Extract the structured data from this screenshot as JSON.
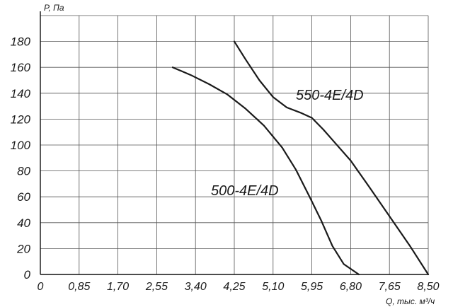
{
  "chart_data": {
    "type": "line",
    "title": "",
    "xlabel": "Q, тыс. м³/ч",
    "ylabel": "P, Па",
    "xlim": [
      0,
      8.5
    ],
    "ylim": [
      0,
      200
    ],
    "grid": true,
    "x_ticks": [
      "0",
      "0,85",
      "1,70",
      "2,55",
      "3,40",
      "4,25",
      "5,10",
      "5,95",
      "6,80",
      "7,65",
      "8,50"
    ],
    "y_ticks": [
      "0",
      "20",
      "40",
      "60",
      "80",
      "100",
      "120",
      "140",
      "160",
      "180"
    ],
    "series": [
      {
        "name": "550-4E/4D",
        "x": [
          4.25,
          4.5,
          4.8,
          5.1,
          5.4,
          5.7,
          5.95,
          6.2,
          6.45,
          6.8,
          7.2,
          7.65,
          8.1,
          8.5
        ],
        "y": [
          180,
          166,
          150,
          137,
          129,
          125,
          121,
          112,
          102,
          88,
          68,
          45,
          22,
          0
        ]
      },
      {
        "name": "500-4E/4D",
        "x": [
          2.9,
          3.3,
          3.7,
          4.1,
          4.5,
          4.9,
          5.3,
          5.6,
          5.9,
          6.15,
          6.4,
          6.65,
          6.98
        ],
        "y": [
          160,
          154,
          147,
          139,
          128,
          115,
          98,
          81,
          60,
          42,
          22,
          8,
          0
        ]
      }
    ]
  }
}
